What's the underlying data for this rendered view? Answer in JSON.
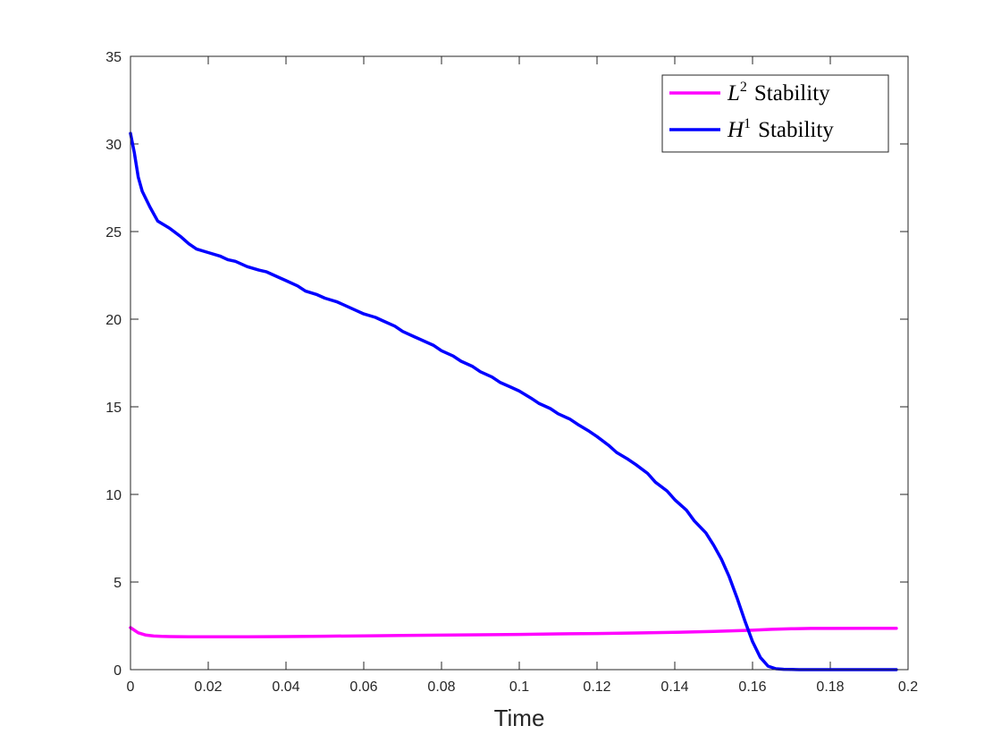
{
  "chart_data": {
    "type": "line",
    "title": "",
    "xlabel": "Time",
    "ylabel": "",
    "xlim": [
      0,
      0.2
    ],
    "ylim": [
      0,
      35
    ],
    "xticks": [
      0,
      0.02,
      0.04,
      0.06,
      0.08,
      0.1,
      0.12,
      0.14,
      0.16,
      0.18,
      0.2
    ],
    "xtick_labels": [
      "0",
      "0.02",
      "0.04",
      "0.06",
      "0.08",
      "0.1",
      "0.12",
      "0.14",
      "0.16",
      "0.18",
      "0.2"
    ],
    "yticks": [
      0,
      5,
      10,
      15,
      20,
      25,
      30,
      35
    ],
    "ytick_labels": [
      "0",
      "5",
      "10",
      "15",
      "20",
      "25",
      "30",
      "35"
    ],
    "grid": false,
    "legend_position": "top-right",
    "series": [
      {
        "name": "L² Stability",
        "legend_base": "L",
        "legend_sup": "2",
        "legend_rest": "Stability",
        "color": "#ff00ff",
        "x": [
          0,
          0.002,
          0.004,
          0.006,
          0.008,
          0.01,
          0.015,
          0.02,
          0.03,
          0.04,
          0.05,
          0.06,
          0.07,
          0.08,
          0.09,
          0.1,
          0.11,
          0.12,
          0.13,
          0.14,
          0.15,
          0.16,
          0.165,
          0.17,
          0.175,
          0.18,
          0.19,
          0.197
        ],
        "y": [
          2.4,
          2.1,
          1.97,
          1.92,
          1.9,
          1.89,
          1.87,
          1.87,
          1.88,
          1.89,
          1.91,
          1.93,
          1.95,
          1.97,
          1.99,
          2.01,
          2.04,
          2.06,
          2.09,
          2.13,
          2.18,
          2.25,
          2.3,
          2.33,
          2.35,
          2.35,
          2.36,
          2.36
        ]
      },
      {
        "name": "H¹ Stability",
        "legend_base": "H",
        "legend_sup": "1",
        "legend_rest": "Stability",
        "color": "#0000ff",
        "x": [
          0,
          0.001,
          0.002,
          0.003,
          0.005,
          0.007,
          0.01,
          0.013,
          0.015,
          0.017,
          0.02,
          0.023,
          0.025,
          0.027,
          0.03,
          0.033,
          0.035,
          0.038,
          0.04,
          0.043,
          0.045,
          0.048,
          0.05,
          0.053,
          0.055,
          0.058,
          0.06,
          0.063,
          0.065,
          0.068,
          0.07,
          0.073,
          0.075,
          0.078,
          0.08,
          0.083,
          0.085,
          0.088,
          0.09,
          0.093,
          0.095,
          0.098,
          0.1,
          0.103,
          0.105,
          0.108,
          0.11,
          0.113,
          0.115,
          0.118,
          0.12,
          0.123,
          0.125,
          0.128,
          0.13,
          0.133,
          0.135,
          0.138,
          0.14,
          0.143,
          0.145,
          0.148,
          0.15,
          0.152,
          0.154,
          0.156,
          0.158,
          0.16,
          0.162,
          0.164,
          0.166,
          0.168,
          0.17,
          0.172,
          0.175,
          0.18,
          0.19,
          0.197
        ],
        "y": [
          30.6,
          29.5,
          28.1,
          27.3,
          26.4,
          25.6,
          25.2,
          24.7,
          24.3,
          24.0,
          23.8,
          23.6,
          23.4,
          23.3,
          23.0,
          22.8,
          22.7,
          22.4,
          22.2,
          21.9,
          21.6,
          21.4,
          21.2,
          21.0,
          20.8,
          20.5,
          20.3,
          20.1,
          19.9,
          19.6,
          19.3,
          19.0,
          18.8,
          18.5,
          18.2,
          17.9,
          17.6,
          17.3,
          17.0,
          16.7,
          16.4,
          16.1,
          15.9,
          15.5,
          15.2,
          14.9,
          14.6,
          14.3,
          14.0,
          13.6,
          13.3,
          12.8,
          12.4,
          12.0,
          11.7,
          11.2,
          10.7,
          10.2,
          9.7,
          9.1,
          8.5,
          7.8,
          7.1,
          6.3,
          5.3,
          4.1,
          2.8,
          1.6,
          0.7,
          0.2,
          0.05,
          0.02,
          0.01,
          0.0,
          0.0,
          0.0,
          0.0,
          0.0
        ]
      }
    ]
  }
}
